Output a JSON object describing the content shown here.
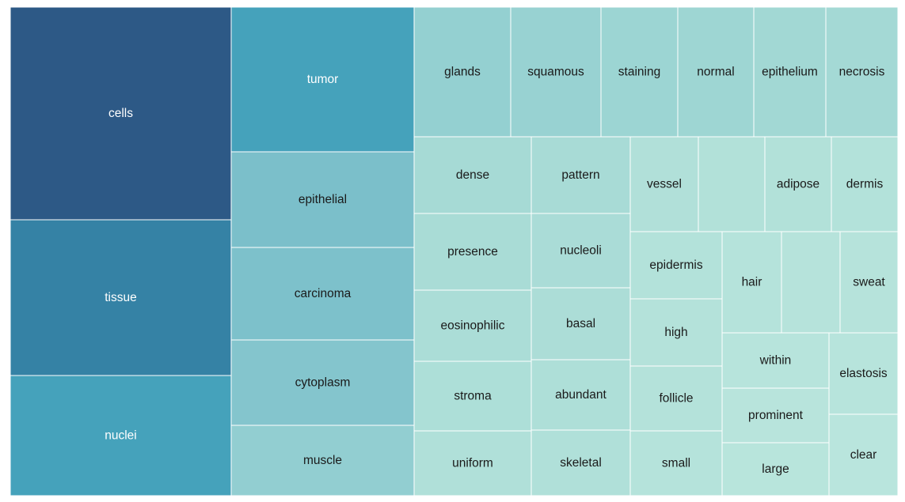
{
  "chart_data": {
    "type": "treemap",
    "title": "",
    "items": [
      {
        "label": "cells",
        "color": "#2d5986",
        "text_color": "#ffffff"
      },
      {
        "label": "tissue",
        "color": "#3582a5",
        "text_color": "#ffffff"
      },
      {
        "label": "nuclei",
        "color": "#45a2bb",
        "text_color": "#ffffff"
      },
      {
        "label": "tumor",
        "color": "#45a2bb",
        "text_color": "#ffffff"
      },
      {
        "label": "epithelial",
        "color": "#7bbfca",
        "text_color": "#1a1a1a"
      },
      {
        "label": "carcinoma",
        "color": "#7dc1cb",
        "text_color": "#1a1a1a"
      },
      {
        "label": "cytoplasm",
        "color": "#84c5cd",
        "text_color": "#1a1a1a"
      },
      {
        "label": "muscle",
        "color": "#92ced1",
        "text_color": "#1a1a1a"
      },
      {
        "label": "glands",
        "color": "#94d0d1",
        "text_color": "#1a1a1a"
      },
      {
        "label": "squamous",
        "color": "#98d2d2",
        "text_color": "#1a1a1a"
      },
      {
        "label": "staining",
        "color": "#9cd5d3",
        "text_color": "#1a1a1a"
      },
      {
        "label": "normal",
        "color": "#9ed6d3",
        "text_color": "#1a1a1a"
      },
      {
        "label": "epithelium",
        "color": "#a2d8d4",
        "text_color": "#1a1a1a"
      },
      {
        "label": "necrosis",
        "color": "#a4d9d5",
        "text_color": "#1a1a1a"
      },
      {
        "label": "dense",
        "color": "#a6dad5",
        "text_color": "#1a1a1a"
      },
      {
        "label": "pattern",
        "color": "#a8dbd6",
        "text_color": "#1a1a1a"
      },
      {
        "label": "presence",
        "color": "#a9dcd6",
        "text_color": "#1a1a1a"
      },
      {
        "label": "nucleoli",
        "color": "#aadcd7",
        "text_color": "#1a1a1a"
      },
      {
        "label": "eosinophilic",
        "color": "#abddd7",
        "text_color": "#1a1a1a"
      },
      {
        "label": "basal",
        "color": "#acddd7",
        "text_color": "#1a1a1a"
      },
      {
        "label": "stroma",
        "color": "#addfd8",
        "text_color": "#1a1a1a"
      },
      {
        "label": "abundant",
        "color": "#aedfd8",
        "text_color": "#1a1a1a"
      },
      {
        "label": "uniform",
        "color": "#b0e0d9",
        "text_color": "#1a1a1a"
      },
      {
        "label": "skeletal",
        "color": "#b0e0d9",
        "text_color": "#1a1a1a"
      },
      {
        "label": "vessel",
        "color": "#b1e0d9",
        "text_color": "#1a1a1a"
      },
      {
        "label": "",
        "color": "#b2e1d9",
        "text_color": "#1a1a1a"
      },
      {
        "label": "adipose",
        "color": "#b2e1d9",
        "text_color": "#1a1a1a"
      },
      {
        "label": "dermis",
        "color": "#b3e2da",
        "text_color": "#1a1a1a"
      },
      {
        "label": "epidermis",
        "color": "#b3e2da",
        "text_color": "#1a1a1a"
      },
      {
        "label": "high",
        "color": "#b4e2da",
        "text_color": "#1a1a1a"
      },
      {
        "label": "follicle",
        "color": "#b4e2da",
        "text_color": "#1a1a1a"
      },
      {
        "label": "small",
        "color": "#b5e3db",
        "text_color": "#1a1a1a"
      },
      {
        "label": "hair",
        "color": "#b5e3db",
        "text_color": "#1a1a1a"
      },
      {
        "label": "",
        "color": "#b6e3db",
        "text_color": "#1a1a1a"
      },
      {
        "label": "sweat",
        "color": "#b6e3db",
        "text_color": "#1a1a1a"
      },
      {
        "label": "within",
        "color": "#b7e4dc",
        "text_color": "#1a1a1a"
      },
      {
        "label": "elastosis",
        "color": "#b7e4dc",
        "text_color": "#1a1a1a"
      },
      {
        "label": "prominent",
        "color": "#b8e4dc",
        "text_color": "#1a1a1a"
      },
      {
        "label": "large",
        "color": "#b8e5dc",
        "text_color": "#1a1a1a"
      },
      {
        "label": "clear",
        "color": "#b9e5dd",
        "text_color": "#1a1a1a"
      }
    ]
  }
}
